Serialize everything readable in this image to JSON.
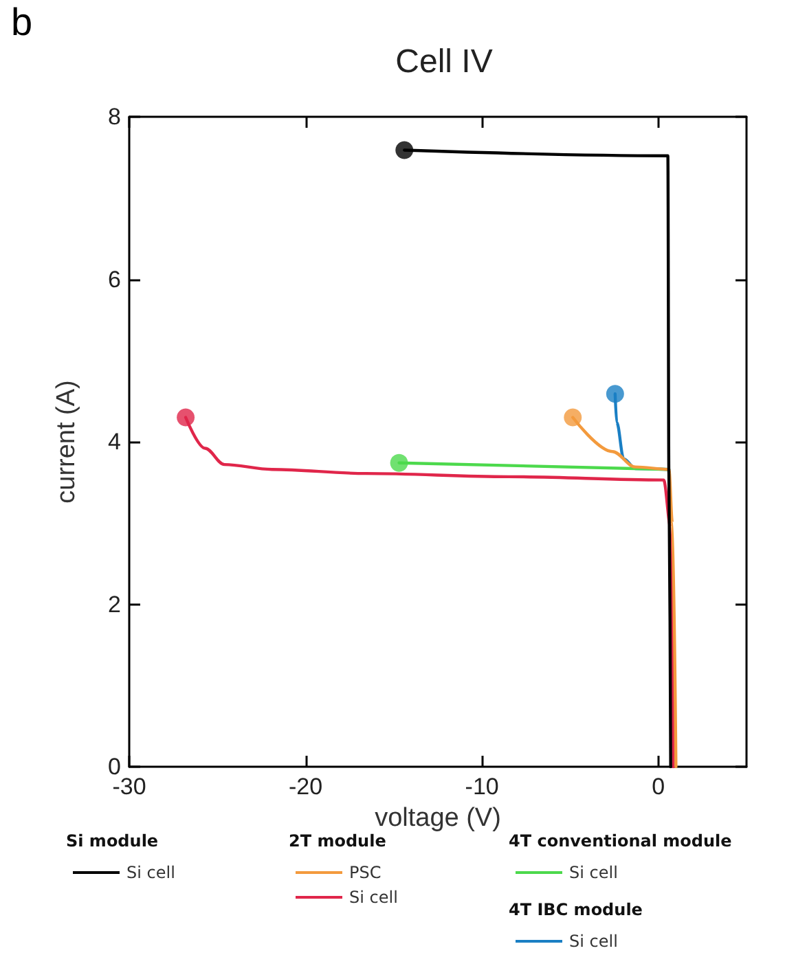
{
  "chart_data": {
    "type": "line",
    "title": "Cell IV",
    "xlabel": "voltage (V)",
    "ylabel": "current (A)",
    "annotations": [
      "b",
      "Si module",
      "2T module",
      "4T conventional module",
      "4T IBC module"
    ],
    "xlim": [
      -30,
      5
    ],
    "xticks": [
      -30,
      -20,
      -10,
      0
    ],
    "ylim": [
      0,
      8
    ],
    "yticks": [
      0,
      2,
      4,
      6,
      8
    ],
    "grid": false,
    "legend": "bottom",
    "line_style": "solid",
    "series": [
      {
        "name": "Si cell",
        "color": "#000000",
        "x": [
          -14.4,
          0.54,
          0.6,
          0.7
        ],
        "values": [
          7.59,
          7.52,
          3.6,
          0
        ]
      },
      {
        "name": "PSC",
        "color": "#f39a3d",
        "x": [
          -4.85,
          -2.6,
          -1.3,
          0.6,
          0.8,
          1.0
        ],
        "values": [
          4.3,
          3.88,
          3.69,
          3.66,
          3.0,
          0
        ]
      },
      {
        "name": "Si cell",
        "color": "#e0264a",
        "x": [
          -26.8,
          -25.7,
          -24.6,
          -21.9,
          -16.6,
          -8.5,
          0.3,
          0.7,
          0.85
        ],
        "values": [
          4.3,
          3.92,
          3.72,
          3.66,
          3.61,
          3.57,
          3.53,
          2.95,
          0
        ]
      },
      {
        "name": "Si cell",
        "color": "#4cd94c",
        "x": [
          -14.7,
          0.6
        ],
        "values": [
          3.74,
          3.66
        ]
      },
      {
        "name": "Si cell",
        "color": "#1a7fc4",
        "x": [
          -2.45,
          -2.36,
          -1.96,
          -1.3,
          0.6
        ],
        "values": [
          4.59,
          4.24,
          3.79,
          3.67,
          3.66
        ]
      },
      {
        "type": "scatter",
        "marker": "circle",
        "x": [
          -14.4,
          -4.85,
          -26.8,
          -14.7,
          -2.45
        ],
        "values": [
          7.59,
          4.3,
          4.3,
          3.74,
          4.59
        ],
        "colors": [
          "#000000",
          "#f39a3d",
          "#e0264a",
          "#4cd94c",
          "#1a7fc4"
        ]
      }
    ]
  }
}
